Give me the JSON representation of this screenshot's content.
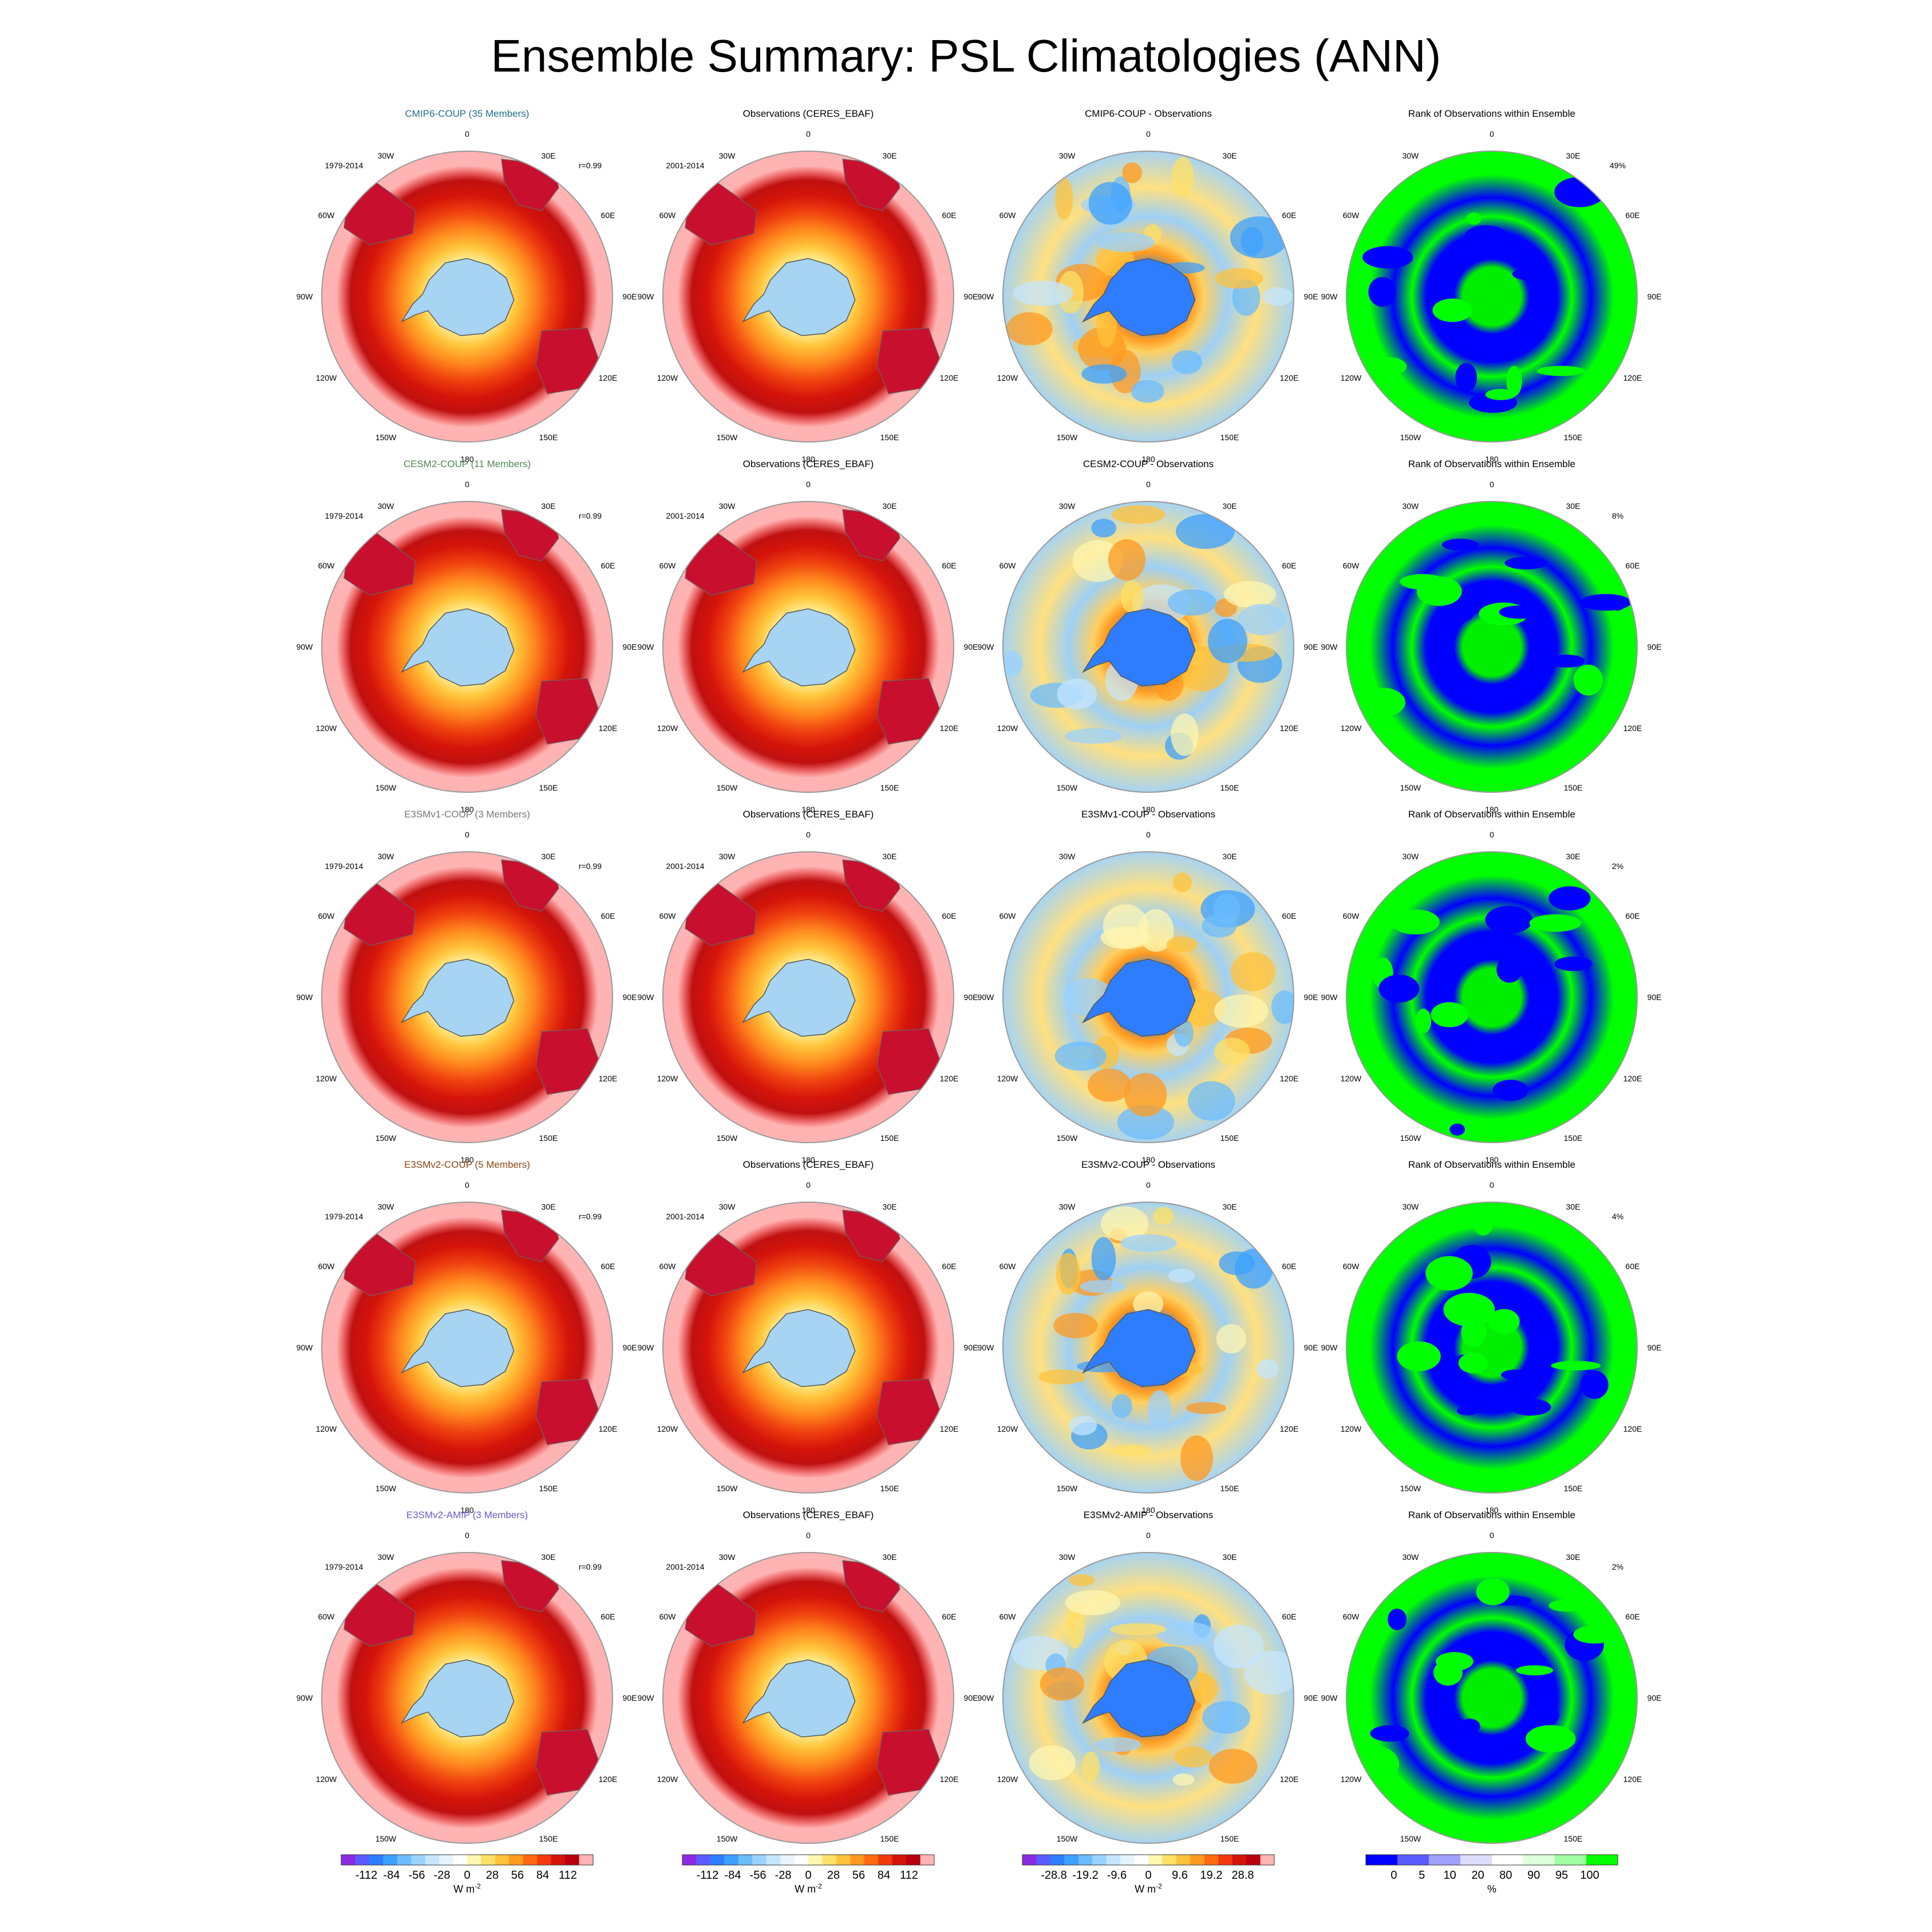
{
  "title": "Ensemble Summary: PSL Climatologies (ANN)",
  "chart_data": {
    "type": "heatmap",
    "projection": "south polar stereographic",
    "longitude_labels": [
      "0",
      "30E",
      "60E",
      "90E",
      "120E",
      "150E",
      "180",
      "150W",
      "120W",
      "90W",
      "60W",
      "30W"
    ],
    "rows": [
      {
        "model": "CMIP6-COUP (35 Members)",
        "model_color": "#1f6f8b",
        "period": "1979-2014",
        "r": "r=0.99",
        "obs_title": "Observations (CERES_EBAF)",
        "obs_period": "2001-2014",
        "diff_title": "CMIP6-COUP - Observations",
        "rank_title": "Rank of Observations within Ensemble",
        "rank_pct": "49%"
      },
      {
        "model": "CESM2-COUP (11 Members)",
        "model_color": "#4f8a4f",
        "period": "1979-2014",
        "r": "r=0.99",
        "obs_title": "Observations (CERES_EBAF)",
        "obs_period": "2001-2014",
        "diff_title": "CESM2-COUP - Observations",
        "rank_title": "Rank of Observations within Ensemble",
        "rank_pct": "8%"
      },
      {
        "model": "E3SMv1-COUP (3 Members)",
        "model_color": "#777777",
        "period": "1979-2014",
        "r": "r=0.99",
        "obs_title": "Observations (CERES_EBAF)",
        "obs_period": "2001-2014",
        "diff_title": "E3SMv1-COUP - Observations",
        "rank_title": "Rank of Observations within Ensemble",
        "rank_pct": "2%"
      },
      {
        "model": "E3SMv2-COUP (5 Members)",
        "model_color": "#8b4513",
        "period": "1979-2014",
        "r": "r=0.99",
        "obs_title": "Observations (CERES_EBAF)",
        "obs_period": "2001-2014",
        "diff_title": "E3SMv2-COUP - Observations",
        "rank_title": "Rank of Observations within Ensemble",
        "rank_pct": "4%"
      },
      {
        "model": "E3SMv2-AMIP (3 Members)",
        "model_color": "#6a5acd",
        "period": "1979-2014",
        "r": "r=0.99",
        "obs_title": "Observations (CERES_EBAF)",
        "obs_period": "2001-2014",
        "diff_title": "E3SMv2-AMIP - Observations",
        "rank_title": "Rank of Observations within Ensemble",
        "rank_pct": "2%"
      }
    ],
    "colorbars": [
      {
        "ticks": [
          "-112",
          "-84",
          "-56",
          "-28",
          "0",
          "28",
          "56",
          "84",
          "112"
        ],
        "unit": "W m",
        "unit_sup": "-2",
        "colors": [
          "#8a2be2",
          "#5a5aff",
          "#2f7dff",
          "#3ca0ff",
          "#6bbcff",
          "#9ad2ff",
          "#c4e6ff",
          "#e6f4ff",
          "#ffffff",
          "#fff6b0",
          "#ffe066",
          "#ffc13b",
          "#ff9a1f",
          "#ff6a10",
          "#f23a0c",
          "#d4140a",
          "#b8000f",
          "#ffb3b3"
        ]
      },
      {
        "ticks": [
          "-112",
          "-84",
          "-56",
          "-28",
          "0",
          "28",
          "56",
          "84",
          "112"
        ],
        "unit": "W m",
        "unit_sup": "-2",
        "colors": [
          "#8a2be2",
          "#5a5aff",
          "#2f7dff",
          "#3ca0ff",
          "#6bbcff",
          "#9ad2ff",
          "#c4e6ff",
          "#e6f4ff",
          "#ffffff",
          "#fff6b0",
          "#ffe066",
          "#ffc13b",
          "#ff9a1f",
          "#ff6a10",
          "#f23a0c",
          "#d4140a",
          "#b8000f",
          "#ffb3b3"
        ]
      },
      {
        "ticks": [
          "-28.8",
          "-19.2",
          "-9.6",
          "0",
          "9.6",
          "19.2",
          "28.8"
        ],
        "unit": "W m",
        "unit_sup": "-2",
        "colors": [
          "#8a2be2",
          "#5a5aff",
          "#2f7dff",
          "#3ca0ff",
          "#6bbcff",
          "#9ad2ff",
          "#c4e6ff",
          "#e6f4ff",
          "#ffffff",
          "#fff6b0",
          "#ffe066",
          "#ffc13b",
          "#ff9a1f",
          "#ff6a10",
          "#f23a0c",
          "#d4140a",
          "#b8000f",
          "#ffb3b3"
        ]
      },
      {
        "ticks": [
          "0",
          "5",
          "10",
          "20",
          "80",
          "90",
          "95",
          "100"
        ],
        "unit": "%",
        "unit_sup": "",
        "colors": [
          "#0000ff",
          "#5a5aff",
          "#a0a0ff",
          "#dcdcff",
          "#ffffff",
          "#dcffdc",
          "#a0ffa0",
          "#00ff00"
        ]
      }
    ],
    "colors": {
      "model_ocean": "#ffb3b3",
      "ring": "#e02010",
      "antarctica": "#a6d4f2",
      "rank_low": "#0000ff",
      "rank_high": "#00ff00"
    }
  }
}
